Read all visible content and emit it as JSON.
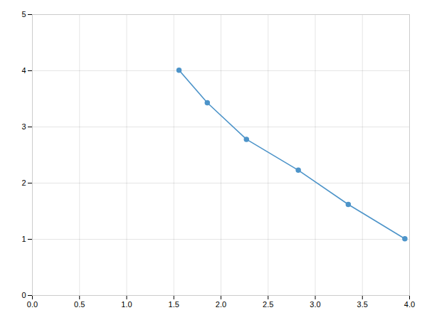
{
  "chart_data": {
    "type": "line",
    "x": [
      1.555,
      1.855,
      2.27,
      2.82,
      3.35,
      3.95
    ],
    "values": [
      4.01,
      3.43,
      2.78,
      2.23,
      1.62,
      1.01
    ],
    "color": "#4d94c9",
    "marker": "circle",
    "xlim": [
      0.0,
      4.0
    ],
    "ylim": [
      0,
      5
    ],
    "xticks": [
      {
        "value": 0,
        "label": "0.0"
      },
      0.5,
      {
        "value": 1,
        "label": "1.0"
      },
      1.5,
      {
        "value": 2,
        "label": "2.0"
      },
      2.5,
      {
        "value": 3,
        "label": "3.0"
      },
      3.5,
      {
        "value": 4,
        "label": "4.0"
      }
    ],
    "yticks": [
      0,
      1,
      2,
      3,
      4,
      5
    ],
    "grid": true
  }
}
